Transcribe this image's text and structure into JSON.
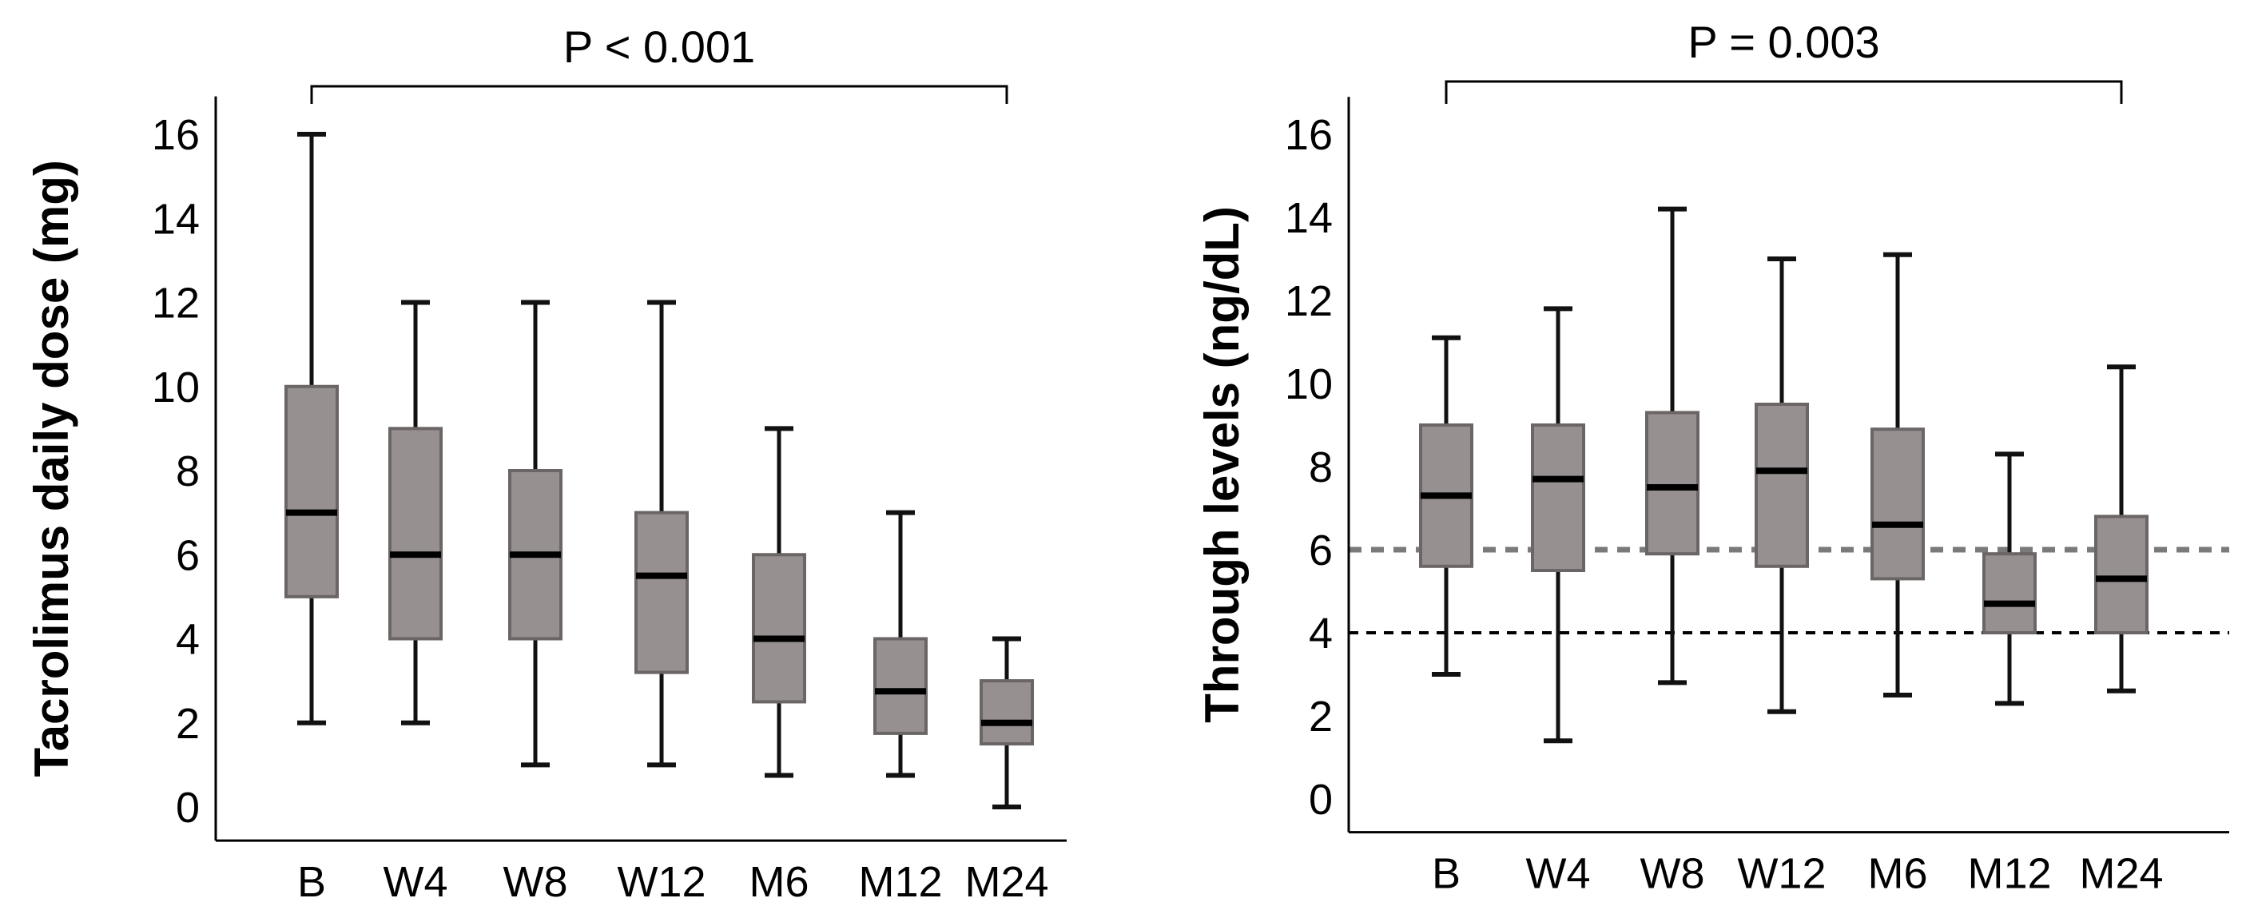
{
  "colors": {
    "box_fill": "#979090",
    "box_stroke": "#6b6565",
    "whisker": "#111111",
    "median": "#000000",
    "axis": "#000000",
    "ref_dashed_gray": "#7a7a7a",
    "ref_dashed_black": "#000000"
  },
  "chart_data": [
    {
      "type": "boxplot",
      "title": "",
      "xlabel": "",
      "ylabel": "Tacrolimus daily dose (mg)",
      "ylim": [
        -0.8,
        16.9
      ],
      "yticks": [
        0,
        2,
        4,
        6,
        8,
        10,
        12,
        14,
        16
      ],
      "categories": [
        "B",
        "W4",
        "W8",
        "W12",
        "M6",
        "M12",
        "M24"
      ],
      "boxes": [
        {
          "min": 2.0,
          "q1": 5.0,
          "median": 7.0,
          "q3": 10.0,
          "max": 16.0
        },
        {
          "min": 2.0,
          "q1": 4.0,
          "median": 6.0,
          "q3": 9.0,
          "max": 12.0
        },
        {
          "min": 1.0,
          "q1": 4.0,
          "median": 6.0,
          "q3": 8.0,
          "max": 12.0
        },
        {
          "min": 1.0,
          "q1": 3.2,
          "median": 5.5,
          "q3": 7.0,
          "max": 12.0
        },
        {
          "min": 0.75,
          "q1": 2.5,
          "median": 4.0,
          "q3": 6.0,
          "max": 9.0
        },
        {
          "min": 0.75,
          "q1": 1.75,
          "median": 2.75,
          "q3": 4.0,
          "max": 7.0
        },
        {
          "min": 0.0,
          "q1": 1.5,
          "median": 2.0,
          "q3": 3.0,
          "max": 4.0
        }
      ],
      "reference_lines": [],
      "bracket": {
        "from": "B",
        "to": "M24",
        "label": "P < 0.001"
      }
    },
    {
      "type": "boxplot",
      "title": "",
      "xlabel": "",
      "ylabel": "Through levels (ng/dL)",
      "ylim": [
        -0.8,
        16.9
      ],
      "yticks": [
        0,
        2,
        4,
        6,
        8,
        10,
        12,
        14,
        16
      ],
      "categories": [
        "B",
        "W4",
        "W8",
        "W12",
        "M6",
        "M12",
        "M24"
      ],
      "boxes": [
        {
          "min": 3.0,
          "q1": 5.6,
          "median": 7.3,
          "q3": 9.0,
          "max": 11.1
        },
        {
          "min": 1.4,
          "q1": 5.5,
          "median": 7.7,
          "q3": 9.0,
          "max": 11.8
        },
        {
          "min": 2.8,
          "q1": 5.9,
          "median": 7.5,
          "q3": 9.3,
          "max": 14.2
        },
        {
          "min": 2.1,
          "q1": 5.6,
          "median": 7.9,
          "q3": 9.5,
          "max": 13.0
        },
        {
          "min": 2.5,
          "q1": 5.3,
          "median": 6.6,
          "q3": 8.9,
          "max": 13.1
        },
        {
          "min": 2.3,
          "q1": 4.0,
          "median": 4.7,
          "q3": 5.9,
          "max": 8.3
        },
        {
          "min": 2.6,
          "q1": 4.0,
          "median": 5.3,
          "q3": 6.8,
          "max": 10.4
        }
      ],
      "reference_lines": [
        {
          "value": 6,
          "style": "dashed-gray"
        },
        {
          "value": 4,
          "style": "dashed-black"
        }
      ],
      "bracket": {
        "from": "B",
        "to": "M24",
        "label": "P = 0.003"
      }
    }
  ]
}
